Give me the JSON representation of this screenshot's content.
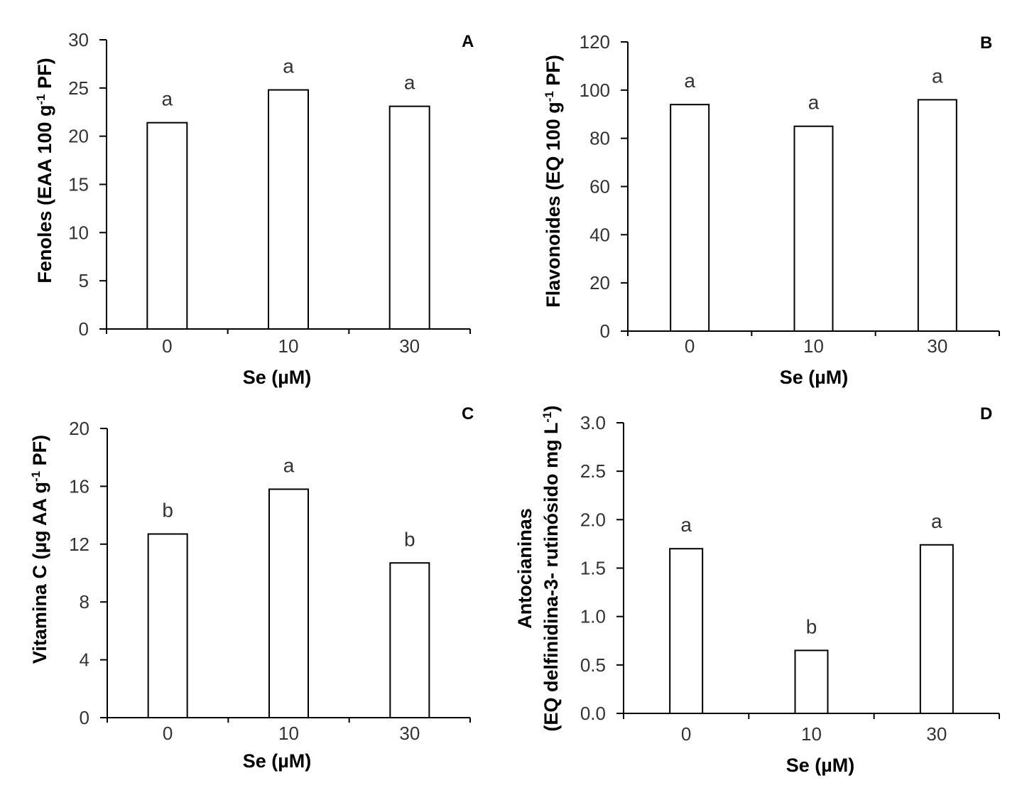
{
  "chart_data": [
    {
      "type": "bar",
      "panel": "A",
      "categories": [
        "0",
        "10",
        "30"
      ],
      "values": [
        21.4,
        24.8,
        23.1
      ],
      "significance": [
        "a",
        "a",
        "a"
      ],
      "ylim": [
        0,
        30
      ],
      "yticks": [
        0,
        5,
        10,
        15,
        20,
        25,
        30
      ],
      "ytick_labels": [
        "0",
        "5",
        "10",
        "15",
        "20",
        "25",
        "30"
      ],
      "xlabel": "Se (µM)",
      "ylabel": "Fenoles (EAA 100 g",
      "ylabel_sup": "-1",
      "ylabel_tail": " PF)"
    },
    {
      "type": "bar",
      "panel": "B",
      "categories": [
        "0",
        "10",
        "30"
      ],
      "values": [
        94,
        85,
        96
      ],
      "significance": [
        "a",
        "a",
        "a"
      ],
      "ylim": [
        0,
        120
      ],
      "yticks": [
        0,
        20,
        40,
        60,
        80,
        100,
        120
      ],
      "ytick_labels": [
        "0",
        "20",
        "40",
        "60",
        "80",
        "100",
        "120"
      ],
      "xlabel": "Se (µM)",
      "ylabel": "Flavonoides (EQ 100 g",
      "ylabel_sup": "-1",
      "ylabel_tail": " PF)"
    },
    {
      "type": "bar",
      "panel": "C",
      "categories": [
        "0",
        "10",
        "30"
      ],
      "values": [
        12.7,
        15.8,
        10.7
      ],
      "significance": [
        "b",
        "a",
        "b"
      ],
      "ylim": [
        0,
        20
      ],
      "yticks": [
        0,
        4,
        8,
        12,
        16,
        20
      ],
      "ytick_labels": [
        "0",
        "4",
        "8",
        "12",
        "16",
        "20"
      ],
      "xlabel": "Se (µM)",
      "ylabel": "Vitamina C (µg AA g",
      "ylabel_sup": "-1",
      "ylabel_tail": " PF)"
    },
    {
      "type": "bar",
      "panel": "D",
      "categories": [
        "0",
        "10",
        "30"
      ],
      "values": [
        1.7,
        0.65,
        1.74
      ],
      "significance": [
        "a",
        "b",
        "a"
      ],
      "ylim": [
        0,
        3
      ],
      "yticks": [
        0,
        0.5,
        1,
        1.5,
        2,
        2.5,
        3
      ],
      "ytick_labels": [
        "0.0",
        "0.5",
        "1.0",
        "1.5",
        "2.0",
        "2.5",
        "3.0"
      ],
      "xlabel": "Se (µM)",
      "ylabel": "Antocianinas",
      "ylabel_line2": "(EQ delfinidina-3- rutinósido mg L",
      "ylabel_sup": "-1",
      "ylabel_tail": ")"
    }
  ]
}
